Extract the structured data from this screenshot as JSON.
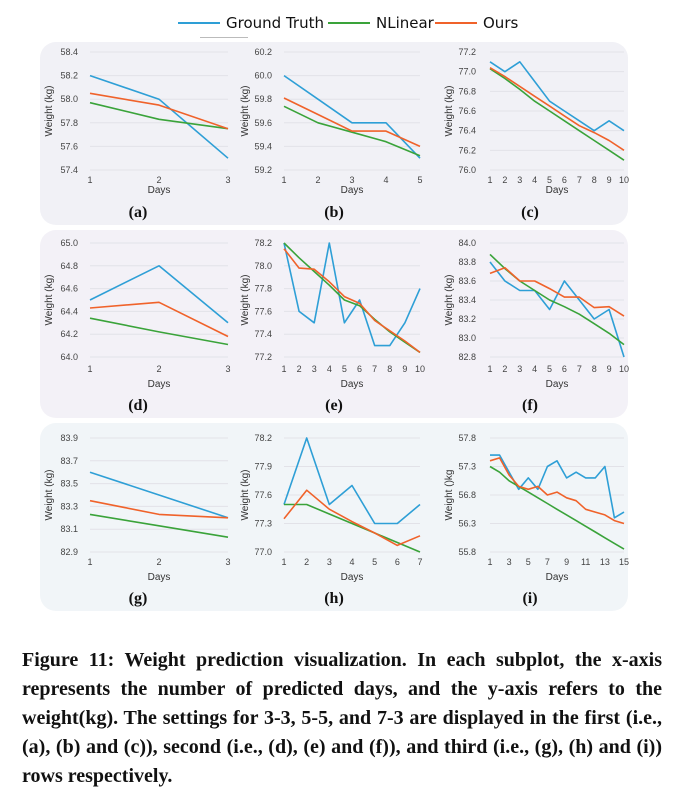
{
  "legend": [
    {
      "label": "Ground Truth",
      "color": "#2e9fd6"
    },
    {
      "label": "NLinear",
      "color": "#3aa33a"
    },
    {
      "label": "Ours",
      "color": "#f0622a"
    }
  ],
  "caption": "Figure 11: Weight prediction visualization. In each subplot, the x-axis represents the number of predicted days, and the y-axis refers to the weight(kg). The settings for 3-3, 5-5, and 7-3 are displayed in the first (i.e., (a), (b) and (c)), second (i.e., (d), (e) and (f)), and third (i.e., (g), (h) and (i)) rows respectively.",
  "chart_data": [
    {
      "type": "line",
      "label": "(a)",
      "xlabel": "Days",
      "ylabel": "Weight (kg)",
      "xlim": [
        1,
        3
      ],
      "xticks": [
        "1",
        "2",
        "3"
      ],
      "ylim": [
        57.4,
        58.4
      ],
      "yticks": [
        "57.4",
        "57.6",
        "57.8",
        "58.0",
        "58.2",
        "58.4"
      ],
      "x": [
        1,
        2,
        3
      ],
      "series": [
        {
          "name": "Ground Truth",
          "values": [
            58.2,
            58.0,
            57.5
          ]
        },
        {
          "name": "NLinear",
          "values": [
            57.97,
            57.83,
            57.75
          ]
        },
        {
          "name": "Ours",
          "values": [
            58.05,
            57.95,
            57.75
          ]
        }
      ]
    },
    {
      "type": "line",
      "label": "(b)",
      "xlabel": "Days",
      "ylabel": "Weight (kg)",
      "xlim": [
        1,
        5
      ],
      "xticks": [
        "1",
        "2",
        "3",
        "4",
        "5"
      ],
      "ylim": [
        59.2,
        60.2
      ],
      "yticks": [
        "59.2",
        "59.4",
        "59.6",
        "59.8",
        "60.0",
        "60.2"
      ],
      "x": [
        1,
        2,
        3,
        4,
        5
      ],
      "series": [
        {
          "name": "Ground Truth",
          "values": [
            60.0,
            59.8,
            59.6,
            59.6,
            59.3
          ]
        },
        {
          "name": "NLinear",
          "values": [
            59.74,
            59.6,
            59.52,
            59.44,
            59.32
          ]
        },
        {
          "name": "Ours",
          "values": [
            59.81,
            59.67,
            59.53,
            59.53,
            59.4
          ]
        }
      ]
    },
    {
      "type": "line",
      "label": "(c)",
      "xlabel": "Days",
      "ylabel": "Weight (kg)",
      "xlim": [
        1,
        10
      ],
      "xticks": [
        "1",
        "2",
        "3",
        "4",
        "5",
        "6",
        "7",
        "8",
        "9",
        "10"
      ],
      "ylim": [
        76.0,
        77.2
      ],
      "yticks": [
        "76.0",
        "76.2",
        "76.4",
        "76.6",
        "76.8",
        "77.0",
        "77.2"
      ],
      "x": [
        1,
        2,
        3,
        4,
        5,
        6,
        7,
        8,
        9,
        10
      ],
      "series": [
        {
          "name": "Ground Truth",
          "values": [
            77.1,
            77.0,
            77.1,
            76.9,
            76.7,
            76.6,
            76.5,
            76.4,
            76.5,
            76.4
          ]
        },
        {
          "name": "NLinear",
          "values": [
            77.03,
            76.93,
            76.82,
            76.7,
            76.6,
            76.5,
            76.4,
            76.3,
            76.2,
            76.1
          ]
        },
        {
          "name": "Ours",
          "values": [
            77.04,
            76.95,
            76.85,
            76.75,
            76.65,
            76.55,
            76.45,
            76.38,
            76.3,
            76.2
          ]
        }
      ]
    },
    {
      "type": "line",
      "label": "(d)",
      "xlabel": "Days",
      "ylabel": "Weight (kg)",
      "xlim": [
        1,
        3
      ],
      "xticks": [
        "1",
        "2",
        "3"
      ],
      "ylim": [
        64.0,
        65.0
      ],
      "yticks": [
        "64.0",
        "64.2",
        "64.4",
        "64.6",
        "64.8",
        "65.0"
      ],
      "x": [
        1,
        2,
        3
      ],
      "series": [
        {
          "name": "Ground Truth",
          "values": [
            64.5,
            64.8,
            64.3
          ]
        },
        {
          "name": "NLinear",
          "values": [
            64.34,
            64.22,
            64.11
          ]
        },
        {
          "name": "Ours",
          "values": [
            64.43,
            64.48,
            64.18
          ]
        }
      ]
    },
    {
      "type": "line",
      "label": "(e)",
      "xlabel": "Days",
      "ylabel": "Weight (kg)",
      "xlim": [
        1,
        10
      ],
      "xticks": [
        "1",
        "2",
        "3",
        "4",
        "5",
        "6",
        "7",
        "8",
        "9",
        "10"
      ],
      "ylim": [
        77.2,
        78.2
      ],
      "yticks": [
        "77.2",
        "77.4",
        "77.6",
        "77.8",
        "78.0",
        "78.2"
      ],
      "x": [
        1,
        2,
        3,
        4,
        5,
        6,
        7,
        8,
        9,
        10
      ],
      "series": [
        {
          "name": "Ground Truth",
          "values": [
            78.2,
            77.6,
            77.5,
            78.2,
            77.5,
            77.7,
            77.3,
            77.3,
            77.5,
            77.8
          ]
        },
        {
          "name": "NLinear",
          "values": [
            78.2,
            78.07,
            77.95,
            77.83,
            77.7,
            77.65,
            77.53,
            77.42,
            77.33,
            77.24
          ]
        },
        {
          "name": "Ours",
          "values": [
            78.15,
            77.98,
            77.97,
            77.86,
            77.73,
            77.67,
            77.52,
            77.43,
            77.34,
            77.24
          ]
        }
      ]
    },
    {
      "type": "line",
      "label": "(f)",
      "xlabel": "Days",
      "ylabel": "Weight (kg)",
      "xlim": [
        1,
        10
      ],
      "xticks": [
        "1",
        "2",
        "3",
        "4",
        "5",
        "6",
        "7",
        "8",
        "9",
        "10"
      ],
      "ylim": [
        82.8,
        84.0
      ],
      "yticks": [
        "82.8",
        "83.0",
        "83.2",
        "83.4",
        "83.6",
        "83.8",
        "84.0"
      ],
      "x": [
        1,
        2,
        3,
        4,
        5,
        6,
        7,
        8,
        9,
        10
      ],
      "series": [
        {
          "name": "Ground Truth",
          "values": [
            83.8,
            83.6,
            83.5,
            83.5,
            83.3,
            83.6,
            83.4,
            83.2,
            83.3,
            82.8
          ]
        },
        {
          "name": "NLinear",
          "values": [
            83.88,
            83.73,
            83.6,
            83.5,
            83.4,
            83.33,
            83.25,
            83.15,
            83.05,
            82.93
          ]
        },
        {
          "name": "Ours",
          "values": [
            83.68,
            83.74,
            83.6,
            83.6,
            83.52,
            83.43,
            83.43,
            83.32,
            83.33,
            83.23
          ]
        }
      ]
    },
    {
      "type": "line",
      "label": "(g)",
      "xlabel": "Days",
      "ylabel": "Weight (kg)",
      "xlim": [
        1,
        3
      ],
      "xticks": [
        "1",
        "2",
        "3"
      ],
      "ylim": [
        82.9,
        83.9
      ],
      "yticks": [
        "82.9",
        "83.1",
        "83.3",
        "83.5",
        "83.7",
        "83.9"
      ],
      "x": [
        1,
        2,
        3
      ],
      "series": [
        {
          "name": "Ground Truth",
          "values": [
            83.6,
            83.4,
            83.2
          ]
        },
        {
          "name": "NLinear",
          "values": [
            83.23,
            83.13,
            83.03
          ]
        },
        {
          "name": "Ours",
          "values": [
            83.35,
            83.23,
            83.2
          ]
        }
      ]
    },
    {
      "type": "line",
      "label": "(h)",
      "xlabel": "Days",
      "ylabel": "Weight (kg)",
      "xlim": [
        1,
        7
      ],
      "xticks": [
        "1",
        "2",
        "3",
        "4",
        "5",
        "6",
        "7"
      ],
      "ylim": [
        77.0,
        78.2
      ],
      "yticks": [
        "77.0",
        "77.3",
        "77.6",
        "77.9",
        "78.2"
      ],
      "x": [
        1,
        2,
        3,
        4,
        5,
        6,
        7
      ],
      "series": [
        {
          "name": "Ground Truth",
          "values": [
            77.5,
            78.2,
            77.5,
            77.7,
            77.3,
            77.3,
            77.5
          ]
        },
        {
          "name": "NLinear",
          "values": [
            77.5,
            77.5,
            77.4,
            77.3,
            77.2,
            77.1,
            77.0
          ]
        },
        {
          "name": "Ours",
          "values": [
            77.35,
            77.65,
            77.45,
            77.32,
            77.2,
            77.07,
            77.17
          ]
        }
      ]
    },
    {
      "type": "line",
      "label": "(i)",
      "xlabel": "Days",
      "ylabel": "Weight ()kg",
      "xlim": [
        1,
        15
      ],
      "xticks": [
        "1",
        "3",
        "5",
        "7",
        "9",
        "11",
        "13",
        "15"
      ],
      "ylim": [
        55.8,
        57.8
      ],
      "yticks": [
        "55.8",
        "56.3",
        "56.8",
        "57.3",
        "57.8"
      ],
      "x": [
        1,
        2,
        3,
        4,
        5,
        6,
        7,
        8,
        9,
        10,
        11,
        12,
        13,
        14,
        15
      ],
      "series": [
        {
          "name": "Ground Truth",
          "values": [
            57.5,
            57.5,
            57.2,
            56.9,
            57.1,
            56.9,
            57.3,
            57.4,
            57.1,
            57.2,
            57.1,
            57.1,
            57.3,
            56.4,
            56.5
          ]
        },
        {
          "name": "NLinear",
          "values": [
            57.3,
            57.2,
            57.05,
            56.95,
            56.85,
            56.75,
            56.65,
            56.55,
            56.45,
            56.35,
            56.25,
            56.15,
            56.05,
            55.95,
            55.85
          ]
        },
        {
          "name": "Ours",
          "values": [
            57.4,
            57.45,
            57.15,
            56.95,
            56.9,
            56.95,
            56.8,
            56.85,
            56.75,
            56.7,
            56.55,
            56.5,
            56.45,
            56.35,
            56.3
          ]
        }
      ]
    }
  ]
}
